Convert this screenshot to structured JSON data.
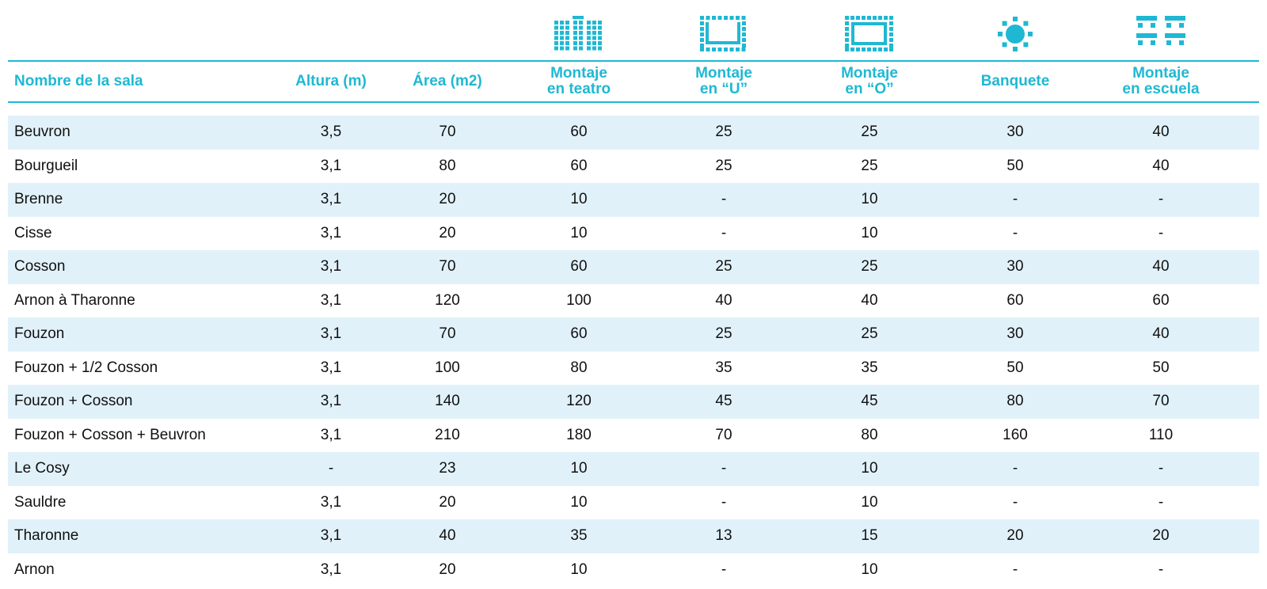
{
  "colors": {
    "accent": "#1fb8d3",
    "row_shade": "#e1f1f9",
    "text": "#111111"
  },
  "icons": [
    {
      "col": 3,
      "name": "theater-seating-icon"
    },
    {
      "col": 4,
      "name": "u-shape-icon"
    },
    {
      "col": 5,
      "name": "o-shape-icon"
    },
    {
      "col": 6,
      "name": "banquet-icon"
    },
    {
      "col": 7,
      "name": "classroom-icon"
    }
  ],
  "headers": [
    [
      "Nombre de la sala"
    ],
    [
      "Altura (m)"
    ],
    [
      "Área (m2)"
    ],
    [
      "Montaje",
      "en teatro"
    ],
    [
      "Montaje",
      "en “U”"
    ],
    [
      "Montaje",
      "en “O”"
    ],
    [
      "Banquete"
    ],
    [
      "Montaje",
      "en escuela"
    ]
  ],
  "rows": [
    [
      "Beuvron",
      "3,5",
      "70",
      "60",
      "25",
      "25",
      "30",
      "40"
    ],
    [
      "Bourgueil",
      "3,1",
      "80",
      "60",
      "25",
      "25",
      "50",
      "40"
    ],
    [
      "Brenne",
      "3,1",
      "20",
      "10",
      "-",
      "10",
      "-",
      "-"
    ],
    [
      "Cisse",
      "3,1",
      "20",
      "10",
      "-",
      "10",
      "-",
      "-"
    ],
    [
      "Cosson",
      "3,1",
      "70",
      "60",
      "25",
      "25",
      "30",
      "40"
    ],
    [
      "Arnon à Tharonne",
      "3,1",
      "120",
      "100",
      "40",
      "40",
      "60",
      "60"
    ],
    [
      "Fouzon",
      "3,1",
      "70",
      "60",
      "25",
      "25",
      "30",
      "40"
    ],
    [
      "Fouzon + 1/2 Cosson",
      "3,1",
      "100",
      "80",
      "35",
      "35",
      "50",
      "50"
    ],
    [
      "Fouzon + Cosson",
      "3,1",
      "140",
      "120",
      "45",
      "45",
      "80",
      "70"
    ],
    [
      "Fouzon + Cosson + Beuvron",
      "3,1",
      "210",
      "180",
      "70",
      "80",
      "160",
      "110"
    ],
    [
      "Le Cosy",
      "-",
      "23",
      "10",
      "-",
      "10",
      "-",
      "-"
    ],
    [
      "Sauldre",
      "3,1",
      "20",
      "10",
      "-",
      "10",
      "-",
      "-"
    ],
    [
      "Tharonne",
      "3,1",
      "40",
      "35",
      "13",
      "15",
      "20",
      "20"
    ],
    [
      "Arnon",
      "3,1",
      "20",
      "10",
      "-",
      "10",
      "-",
      "-"
    ]
  ]
}
